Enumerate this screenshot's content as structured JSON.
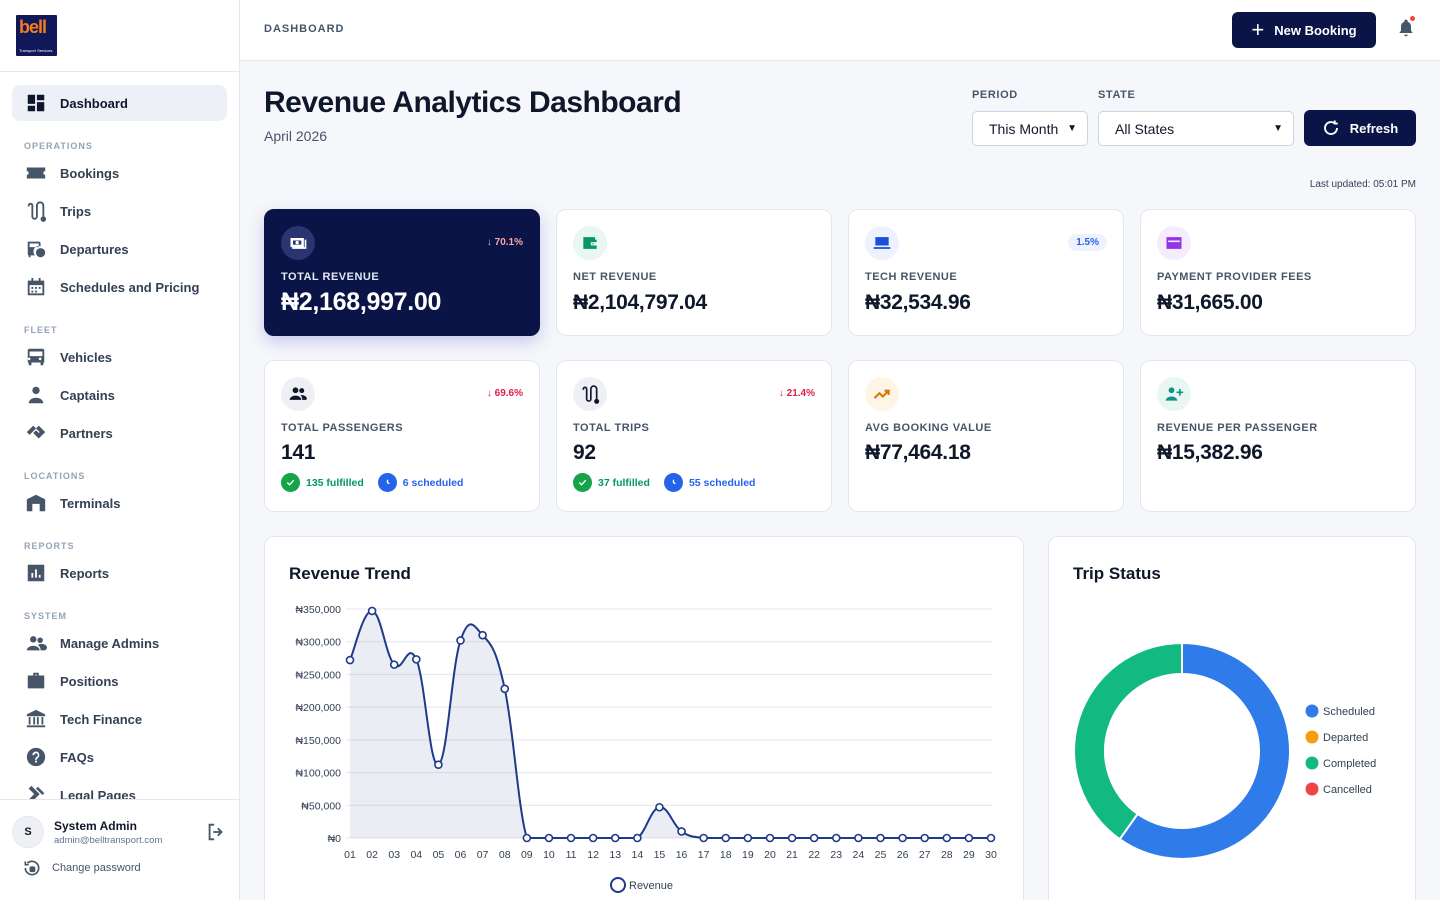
{
  "app": {
    "logo_text": "bell",
    "logo_subtext": "Transport Services"
  },
  "sidebar": {
    "dashboard": "Dashboard",
    "sections": {
      "operations": "OPERATIONS",
      "fleet": "FLEET",
      "locations": "LOCATIONS",
      "reports": "REPORTS",
      "system": "SYSTEM"
    },
    "items": {
      "bookings": "Bookings",
      "trips": "Trips",
      "departures": "Departures",
      "schedules": "Schedules and Pricing",
      "vehicles": "Vehicles",
      "captains": "Captains",
      "partners": "Partners",
      "terminals": "Terminals",
      "reports": "Reports",
      "manage_admins": "Manage Admins",
      "positions": "Positions",
      "tech_finance": "Tech Finance",
      "faqs": "FAQs",
      "legal_pages": "Legal Pages"
    },
    "user": {
      "initial": "S",
      "name": "System Admin",
      "email": "admin@belltransport.com"
    },
    "change_password": "Change password"
  },
  "topbar": {
    "breadcrumb": "DASHBOARD",
    "new_booking": "New Booking",
    "notification_dot_color": "#ef4444"
  },
  "header": {
    "title": "Revenue Analytics Dashboard",
    "subtitle": "April 2026",
    "period_label": "PERIOD",
    "period_value": "This Month",
    "state_label": "STATE",
    "state_value": "All States",
    "refresh": "Refresh",
    "last_updated": "Last updated: 05:01 PM"
  },
  "cards": {
    "total_revenue": {
      "label": "TOTAL REVENUE",
      "value": "₦2,168,997.00",
      "change": "↓ 70.1%"
    },
    "net_revenue": {
      "label": "NET REVENUE",
      "value": "₦2,104,797.04"
    },
    "tech_revenue": {
      "label": "TECH REVENUE",
      "value": "₦32,534.96",
      "badge": "1.5%"
    },
    "provider_fees": {
      "label": "PAYMENT PROVIDER FEES",
      "value": "₦31,665.00"
    },
    "total_passengers": {
      "label": "TOTAL PASSENGERS",
      "value": "141",
      "change": "↓ 69.6%",
      "fulfilled": "135 fulfilled",
      "scheduled": "6 scheduled"
    },
    "total_trips": {
      "label": "TOTAL TRIPS",
      "value": "92",
      "change": "↓ 21.4%",
      "fulfilled": "37 fulfilled",
      "scheduled": "55 scheduled"
    },
    "avg_booking": {
      "label": "AVG BOOKING VALUE",
      "value": "₦77,464.18"
    },
    "rev_per_passenger": {
      "label": "REVENUE PER PASSENGER",
      "value": "₦15,382.96"
    }
  },
  "colors": {
    "primary": "#0b1446",
    "negative": "#e11d48",
    "positive": "#059669",
    "info": "#2563eb"
  },
  "revenue_trend": {
    "title": "Revenue Trend"
  },
  "trip_status": {
    "title": "Trip Status"
  },
  "chart_data": [
    {
      "type": "line",
      "title": "Revenue Trend",
      "x": [
        "01",
        "02",
        "03",
        "04",
        "05",
        "06",
        "07",
        "08",
        "09",
        "10",
        "11",
        "12",
        "13",
        "14",
        "15",
        "16",
        "17",
        "18",
        "19",
        "20",
        "21",
        "22",
        "23",
        "24",
        "25",
        "26",
        "27",
        "28",
        "29",
        "30"
      ],
      "series": [
        {
          "name": "Revenue",
          "color": "#1e3a8a",
          "fill": "rgba(30,58,138,0.09)",
          "values": [
            272000,
            347000,
            265000,
            273000,
            112000,
            302000,
            310000,
            228000,
            0,
            0,
            0,
            0,
            0,
            0,
            47000,
            10000,
            0,
            0,
            0,
            0,
            0,
            0,
            0,
            0,
            0,
            0,
            0,
            0,
            0,
            0
          ]
        }
      ],
      "ylim": [
        0,
        350000
      ],
      "y_ticks": [
        "₦0",
        "₦50,000",
        "₦100,000",
        "₦150,000",
        "₦200,000",
        "₦250,000",
        "₦300,000",
        "₦350,000"
      ],
      "grid": true,
      "legend": "bottom"
    },
    {
      "type": "pie",
      "style": "donut",
      "title": "Trip Status",
      "labels": [
        "Scheduled",
        "Departed",
        "Completed",
        "Cancelled"
      ],
      "values": [
        55,
        0,
        37,
        0
      ],
      "colors": [
        "#2f7bea",
        "#f59e0b",
        "#12b981",
        "#ef4444"
      ],
      "legend": "right"
    }
  ]
}
